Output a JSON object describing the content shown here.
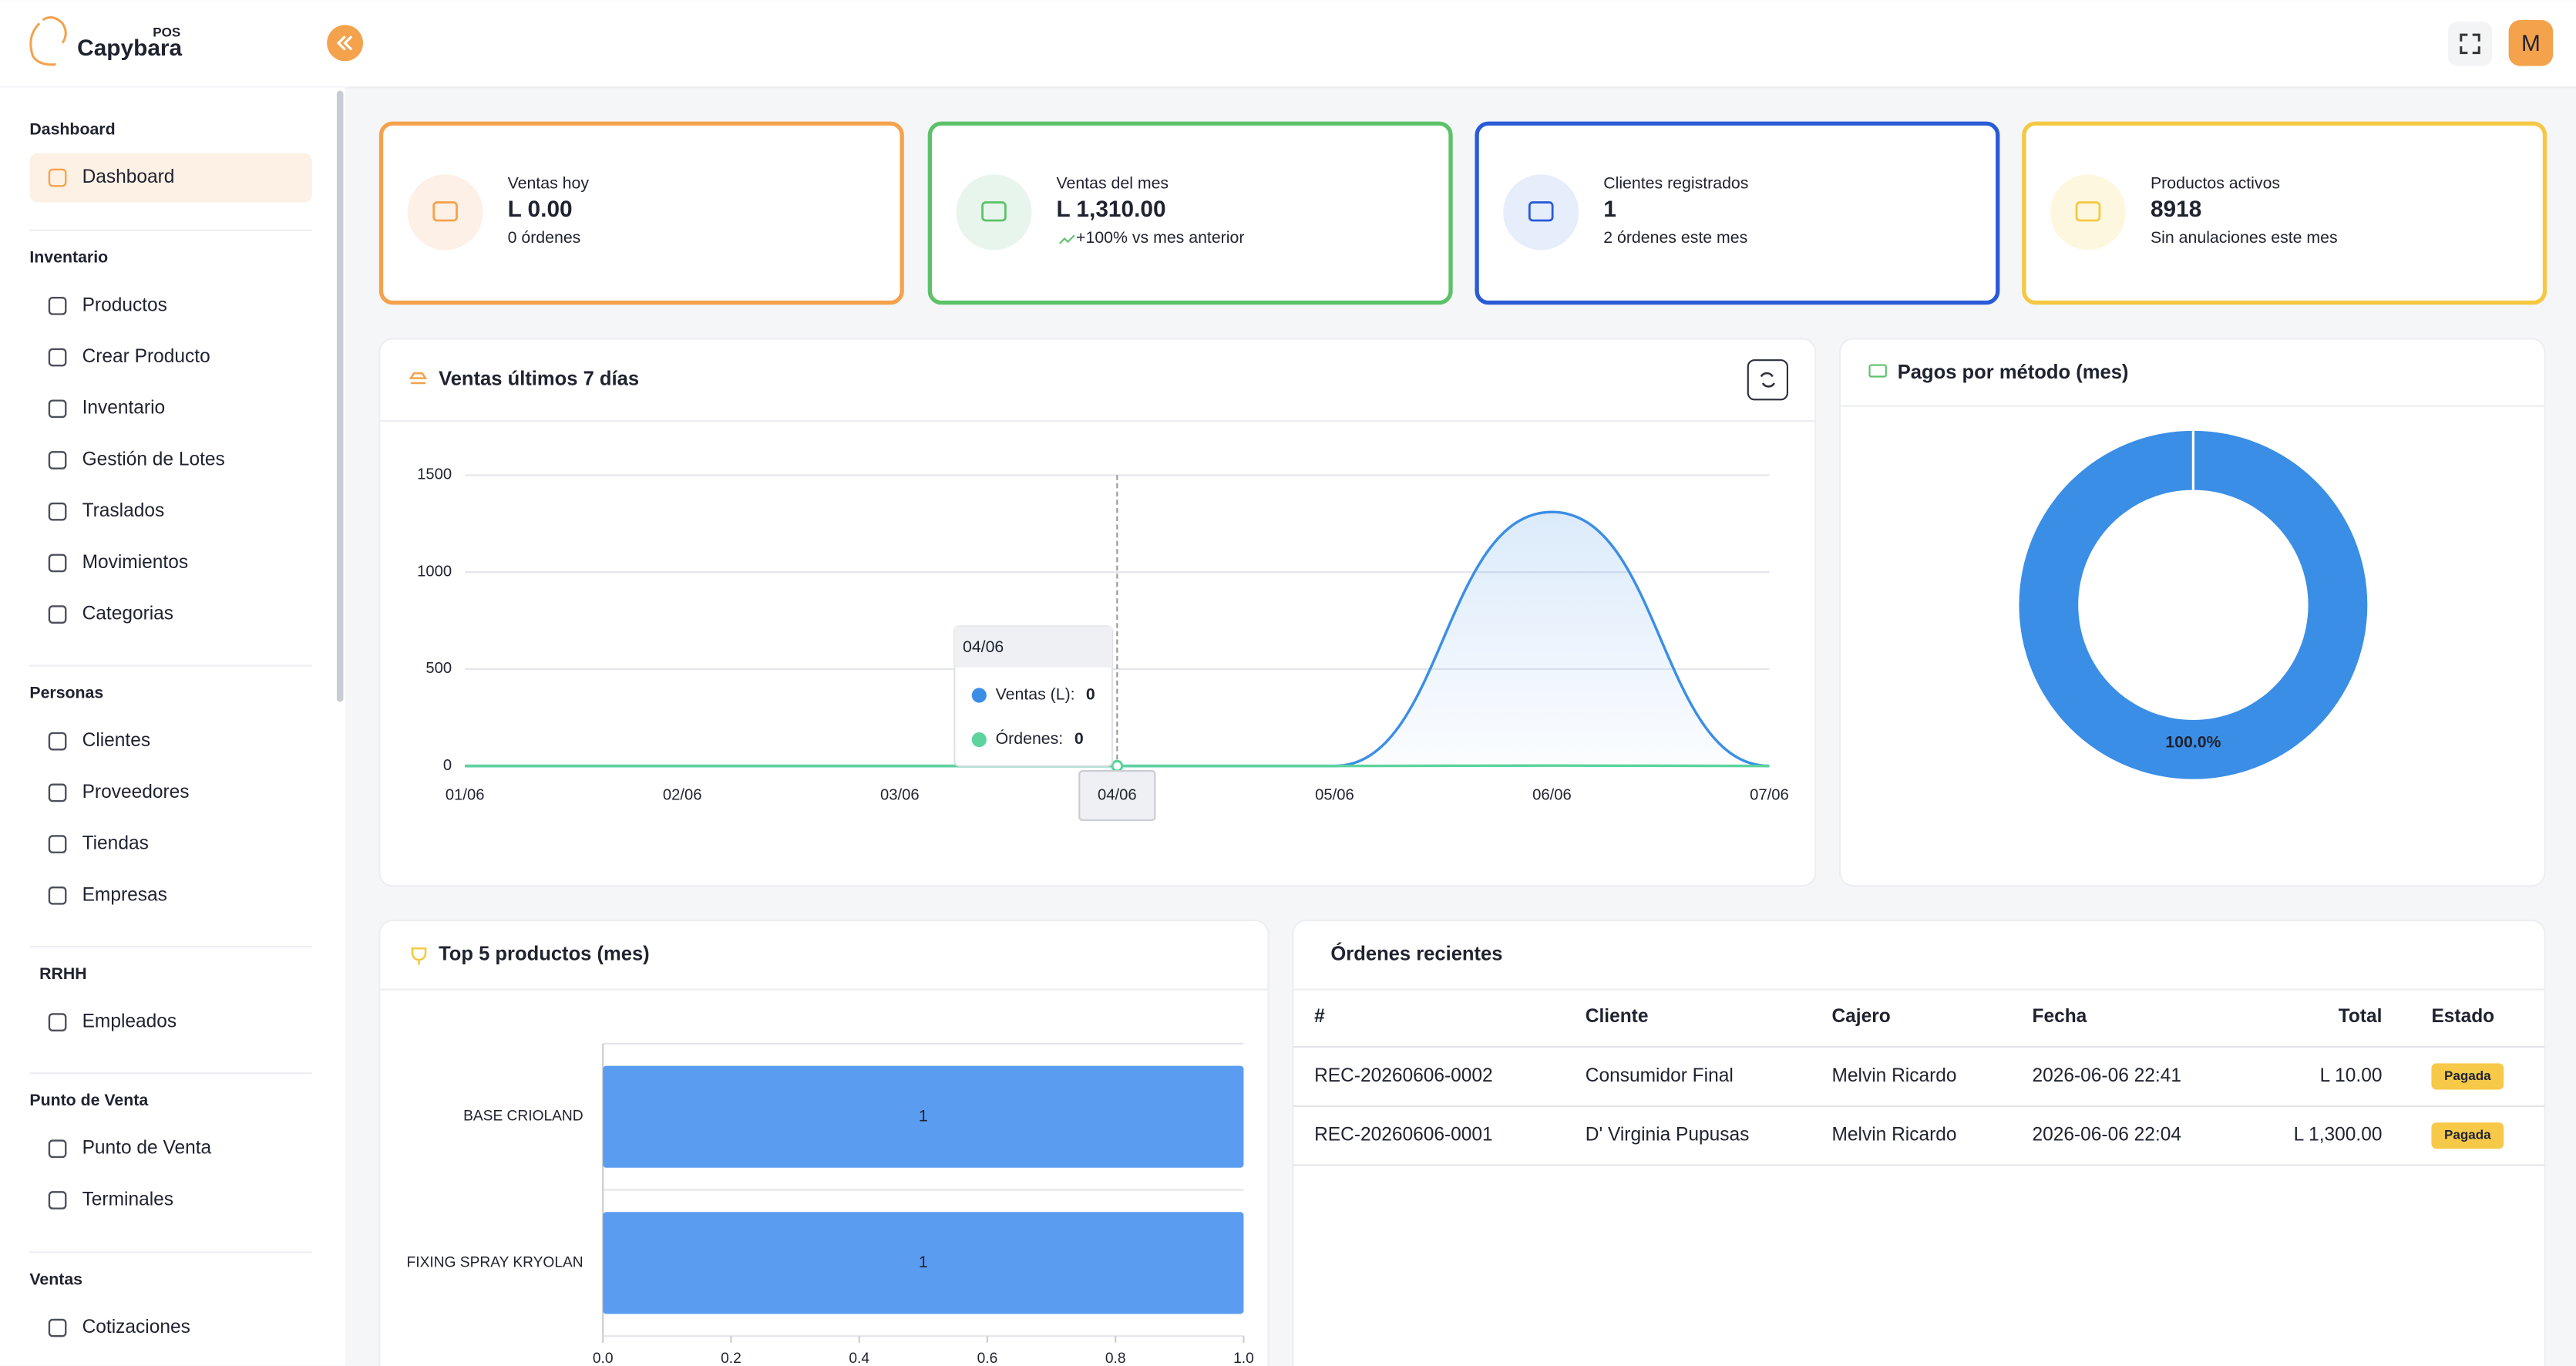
{
  "logo": {
    "brand": "Capybara",
    "tag": "POS"
  },
  "header": {
    "avatar": "M"
  },
  "sidebar": [
    {
      "title": "Dashboard",
      "items": [
        "Dashboard"
      ]
    },
    {
      "title": "Inventario",
      "items": [
        "Productos",
        "Crear Producto",
        "Inventario",
        "Gestión de Lotes",
        "Traslados",
        "Movimientos",
        "Categorias"
      ]
    },
    {
      "title": "Personas",
      "items": [
        "Clientes",
        "Proveedores",
        "Tiendas",
        "Empresas"
      ]
    },
    {
      "title": "RRHH",
      "items": [
        "Empleados"
      ]
    },
    {
      "title": "Punto de Venta",
      "items": [
        "Punto de Venta",
        "Terminales"
      ]
    },
    {
      "title": "Ventas",
      "items": [
        "Cotizaciones"
      ]
    }
  ],
  "kpis": [
    {
      "label": "Ventas hoy",
      "value": "L 0.00",
      "note": "0 órdenes"
    },
    {
      "label": "Ventas del mes",
      "value": "L 1,310.00",
      "note": "+100% vs mes anterior"
    },
    {
      "label": "Clientes registrados",
      "value": "1",
      "note": "2 órdenes este mes"
    },
    {
      "label": "Productos activos",
      "value": "8918",
      "note": "Sin anulaciones este mes"
    }
  ],
  "sales_chart": {
    "type": "line",
    "title": "Ventas últimos 7 días",
    "categories": [
      "01/06",
      "02/06",
      "03/06",
      "04/06",
      "05/06",
      "06/06",
      "07/06"
    ],
    "series": [
      {
        "name": "Ventas (L)",
        "color": "#3a8ee6",
        "values": [
          0,
          0,
          0,
          0,
          0,
          1310,
          0
        ]
      },
      {
        "name": "Órdenes",
        "color": "#5dd39e",
        "values": [
          0,
          0,
          0,
          0,
          0,
          2,
          0
        ]
      }
    ],
    "ylim": [
      0,
      1500
    ],
    "yticks": [
      0,
      500,
      1000,
      1500
    ],
    "grid": true
  },
  "payments_chart": {
    "type": "pie",
    "title": "Pagos por método (mes)",
    "donut": true,
    "values": [
      100
    ],
    "value_labels": [
      "100.0%"
    ],
    "color": "#3a8ee6"
  },
  "top_products": {
    "type": "bar",
    "orientation": "horizontal",
    "title": "Top 5 productos (mes)",
    "categories": [
      "BASE CRIOLAND",
      "FIXING SPRAY KRYOLAN"
    ],
    "values": [
      1,
      1
    ],
    "color": "#5a9cf0",
    "xlim": [
      0,
      1
    ],
    "xticks": [
      {
        "value": 0,
        "label": "0.0"
      },
      0.2,
      0.4,
      0.6,
      0.8,
      {
        "value": 1,
        "label": "1.0"
      }
    ]
  },
  "orders": {
    "title": "Órdenes recientes",
    "columns": [
      "#",
      "Cliente",
      "Cajero",
      "Fecha",
      "Total",
      "Estado"
    ],
    "rows": [
      [
        "REC-20260606-0002",
        "Consumidor Final",
        "Melvin Ricardo",
        "2026-06-06 22:41",
        "L 10.00",
        "Pagada"
      ],
      [
        "REC-20260606-0001",
        "D' Virginia Pupusas",
        "Melvin Ricardo",
        "2026-06-06 22:04",
        "L 1,300.00",
        "Pagada"
      ]
    ]
  }
}
